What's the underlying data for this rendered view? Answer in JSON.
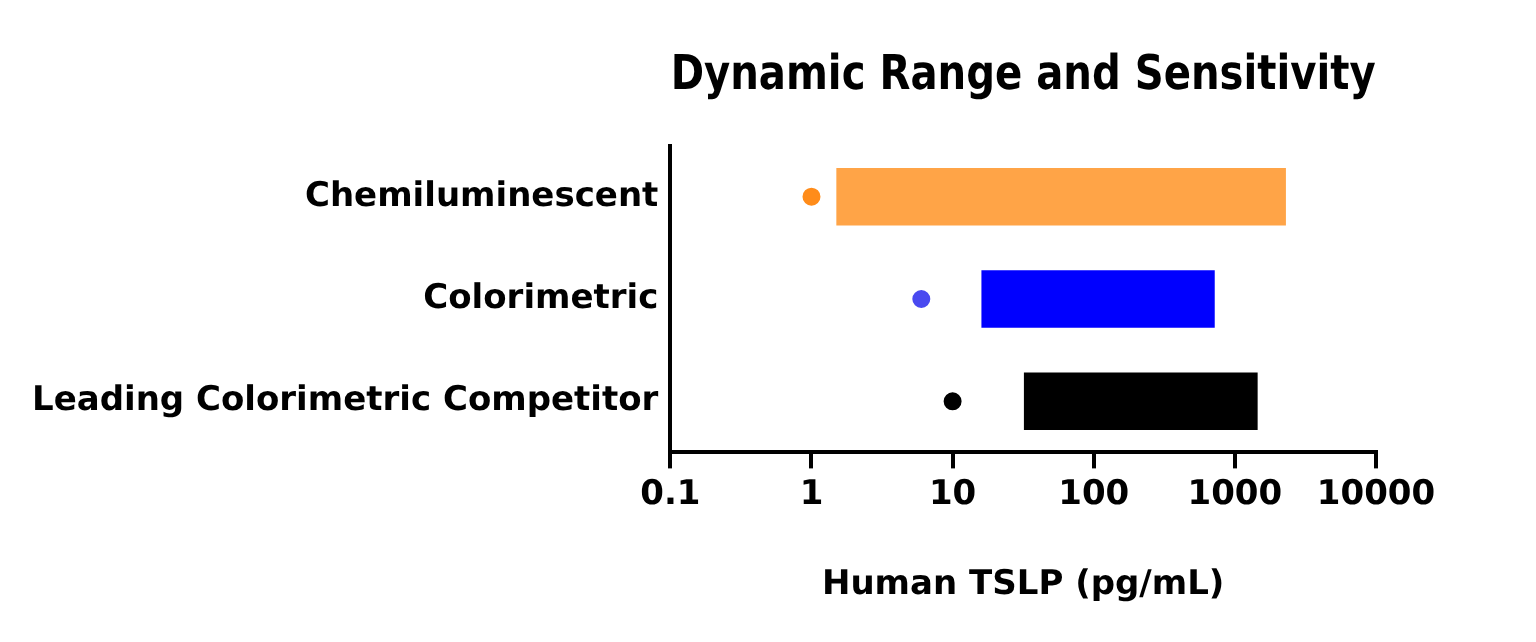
{
  "chart_data": {
    "type": "bar",
    "orientation": "horizontal",
    "title": "Dynamic Range and Sensitivity",
    "xlabel": "Human TSLP (pg/mL)",
    "categories": [
      "Chemiluminescent",
      "Colorimetric",
      "Leading Colorimetric Competitor"
    ],
    "series": [
      {
        "colors": [
          "#ffa447",
          "#0000ff",
          "#000000"
        ],
        "base": [
          1.5,
          16,
          32
        ],
        "values": [
          2298.5,
          704,
          1418
        ]
      },
      {
        "type": "scatter",
        "x": [
          "Chemiluminescent",
          "Colorimetric",
          "Leading Colorimetric Competitor"
        ],
        "colors": [
          "#ff8c1a",
          "#4a4af0",
          "#000000"
        ],
        "values": [
          1,
          6,
          10
        ]
      }
    ],
    "xlim": [
      0.1,
      10000
    ],
    "xticks": [
      0.1,
      1,
      10,
      100,
      1000,
      10000
    ],
    "log": "x",
    "grid": false,
    "legend": false,
    "marker": "circle"
  }
}
